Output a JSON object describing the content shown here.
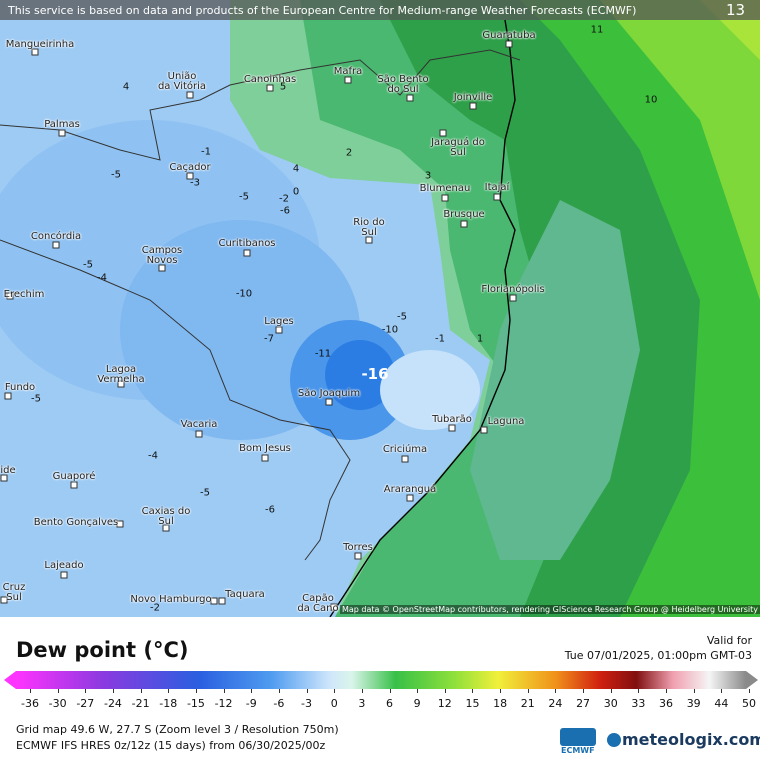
{
  "header": {
    "attribution": "This service is based on data and products of the European Centre for Medium-range Weather Forecasts (ECMWF)",
    "page_number": "13"
  },
  "map": {
    "cities": [
      "Mangueirinha",
      "União\nda Vitória",
      "Canoinhas",
      "Mafra",
      "São Bento\ndo Sul",
      "Guaratuba",
      "Joinville",
      "Jaraguá do\nSul",
      "Palmas",
      "Caçador",
      "Blumenau",
      "Itajaí",
      "Brusque",
      "Rio do\nSul",
      "Concórdia",
      "Curitibanos",
      "Campos\nNovos",
      "Erechim",
      "Florianópolis",
      "Lages",
      "Lagoa\nVermelha",
      "Fundo",
      "São Joaquim",
      "Vacaria",
      "Tubarão",
      "Laguna",
      "Bom Jesus",
      "Criciúma",
      "ide",
      "Guaporé",
      "Araranguá",
      "Bento Gonçalves",
      "Caxias do\nSul",
      "Torres",
      "Lajeado",
      "Cruz\nSul",
      "Novo Hamburgo",
      "Taquara",
      "Capão\nda Cano"
    ],
    "contour_labels": [
      11,
      4,
      5,
      10,
      -1,
      2,
      4,
      -5,
      -3,
      3,
      0,
      -5,
      -2,
      -6,
      -5,
      -4,
      -10,
      -5,
      -10,
      -7,
      -1,
      1,
      -11,
      -16,
      -5,
      -4,
      -5,
      -6,
      -2
    ],
    "attribution": "Map data © OpenStreetMap contributors, rendering GIScience Research Group @ Heidelberg University"
  },
  "legend": {
    "title": "Dew point (°C)",
    "valid_label": "Valid for",
    "valid_time": "Tue 07/01/2025, 01:00pm GMT-03",
    "ticks": [
      -36,
      -30,
      -27,
      -24,
      -21,
      -18,
      -15,
      -12,
      -9,
      -6,
      -3,
      0,
      3,
      6,
      9,
      12,
      15,
      18,
      21,
      24,
      27,
      30,
      33,
      36,
      39,
      44,
      50
    ]
  },
  "footer": {
    "grid_info": "Grid map 49.6 W, 27.7 S (Zoom level 3 / Resolution 750m)",
    "model_info": "ECMWF IFS HRES 0z/12z (15 days) from 06/30/2025/00z",
    "ecmwf_logo": "ECMWF",
    "brand": "meteologix.com"
  }
}
